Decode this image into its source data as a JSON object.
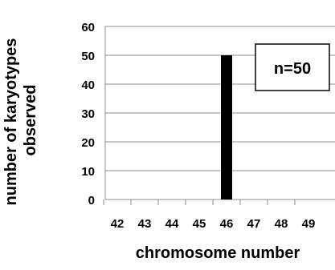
{
  "chart_data": {
    "type": "bar",
    "title": "",
    "xlabel": "chromosome number",
    "ylabel_lines": [
      "number of karyotypes",
      "observed"
    ],
    "categories": [
      "42",
      "43",
      "44",
      "45",
      "46",
      "47",
      "48",
      "49"
    ],
    "values": [
      0,
      0,
      0,
      0,
      50,
      0,
      0,
      0
    ],
    "ylim": [
      0,
      60
    ],
    "yticks": [
      "0",
      "10",
      "20",
      "30",
      "40",
      "50",
      "60"
    ],
    "grid": true,
    "bar_color": "#000000",
    "grid_color": "#8c8c8c",
    "annotation": "n=50"
  }
}
